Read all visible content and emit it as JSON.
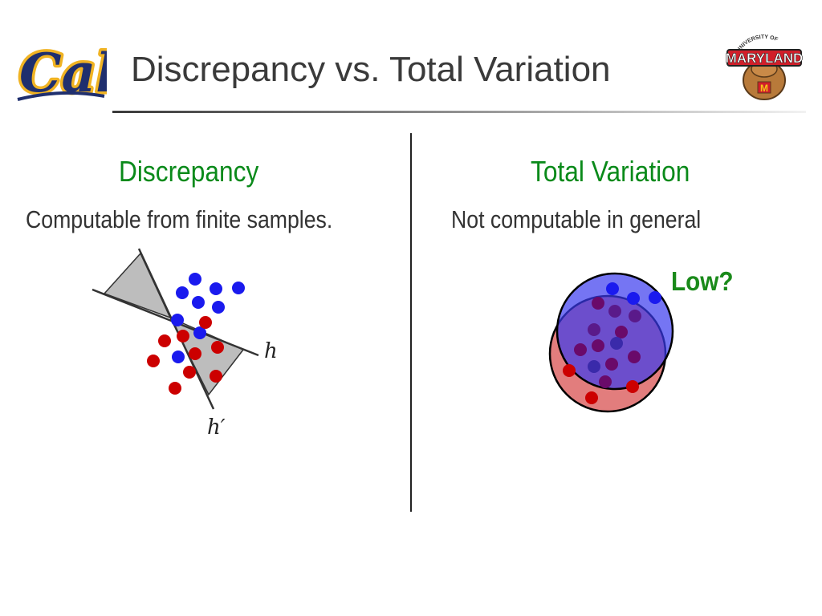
{
  "slide": {
    "title": "Discrepancy vs. Total Variation",
    "logo_left_text": "Cal",
    "logo_right_text": "UNIVERSITY OF MARYLAND"
  },
  "left": {
    "heading": "Discrepancy",
    "description": "Computable from finite samples.",
    "label_h": "h",
    "label_h_prime": "h′"
  },
  "right": {
    "heading": "Total Variation",
    "description": "Not computable in general",
    "annotation": "Low?"
  },
  "colors": {
    "heading_green": "#0a8a1a",
    "blue_point": "#1a1aee",
    "red_point": "#cc0000",
    "purple_point": "#660066",
    "region_fill": "#bdbdbd"
  }
}
